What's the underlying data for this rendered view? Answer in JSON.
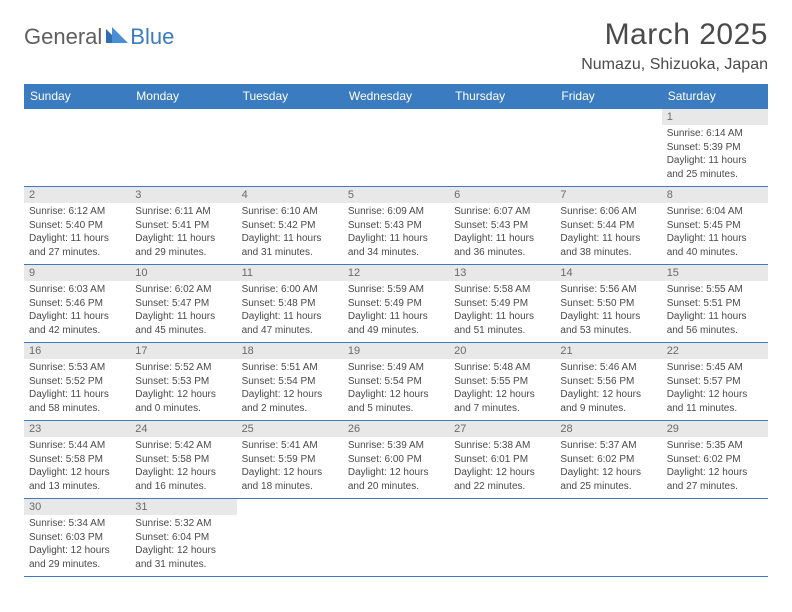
{
  "logo": {
    "text1": "General",
    "text2": "Blue"
  },
  "title": "March 2025",
  "location": "Numazu, Shizuoka, Japan",
  "colors": {
    "header_bg": "#3b7bbf",
    "header_text": "#ffffff",
    "daynum_bg": "#e8e8e8",
    "rule": "#3b7bbf",
    "body_text": "#4a4a4a"
  },
  "dayHeaders": [
    "Sunday",
    "Monday",
    "Tuesday",
    "Wednesday",
    "Thursday",
    "Friday",
    "Saturday"
  ],
  "weeks": [
    [
      null,
      null,
      null,
      null,
      null,
      null,
      {
        "n": "1",
        "sr": "Sunrise: 6:14 AM",
        "ss": "Sunset: 5:39 PM",
        "dl": "Daylight: 11 hours and 25 minutes."
      }
    ],
    [
      {
        "n": "2",
        "sr": "Sunrise: 6:12 AM",
        "ss": "Sunset: 5:40 PM",
        "dl": "Daylight: 11 hours and 27 minutes."
      },
      {
        "n": "3",
        "sr": "Sunrise: 6:11 AM",
        "ss": "Sunset: 5:41 PM",
        "dl": "Daylight: 11 hours and 29 minutes."
      },
      {
        "n": "4",
        "sr": "Sunrise: 6:10 AM",
        "ss": "Sunset: 5:42 PM",
        "dl": "Daylight: 11 hours and 31 minutes."
      },
      {
        "n": "5",
        "sr": "Sunrise: 6:09 AM",
        "ss": "Sunset: 5:43 PM",
        "dl": "Daylight: 11 hours and 34 minutes."
      },
      {
        "n": "6",
        "sr": "Sunrise: 6:07 AM",
        "ss": "Sunset: 5:43 PM",
        "dl": "Daylight: 11 hours and 36 minutes."
      },
      {
        "n": "7",
        "sr": "Sunrise: 6:06 AM",
        "ss": "Sunset: 5:44 PM",
        "dl": "Daylight: 11 hours and 38 minutes."
      },
      {
        "n": "8",
        "sr": "Sunrise: 6:04 AM",
        "ss": "Sunset: 5:45 PM",
        "dl": "Daylight: 11 hours and 40 minutes."
      }
    ],
    [
      {
        "n": "9",
        "sr": "Sunrise: 6:03 AM",
        "ss": "Sunset: 5:46 PM",
        "dl": "Daylight: 11 hours and 42 minutes."
      },
      {
        "n": "10",
        "sr": "Sunrise: 6:02 AM",
        "ss": "Sunset: 5:47 PM",
        "dl": "Daylight: 11 hours and 45 minutes."
      },
      {
        "n": "11",
        "sr": "Sunrise: 6:00 AM",
        "ss": "Sunset: 5:48 PM",
        "dl": "Daylight: 11 hours and 47 minutes."
      },
      {
        "n": "12",
        "sr": "Sunrise: 5:59 AM",
        "ss": "Sunset: 5:49 PM",
        "dl": "Daylight: 11 hours and 49 minutes."
      },
      {
        "n": "13",
        "sr": "Sunrise: 5:58 AM",
        "ss": "Sunset: 5:49 PM",
        "dl": "Daylight: 11 hours and 51 minutes."
      },
      {
        "n": "14",
        "sr": "Sunrise: 5:56 AM",
        "ss": "Sunset: 5:50 PM",
        "dl": "Daylight: 11 hours and 53 minutes."
      },
      {
        "n": "15",
        "sr": "Sunrise: 5:55 AM",
        "ss": "Sunset: 5:51 PM",
        "dl": "Daylight: 11 hours and 56 minutes."
      }
    ],
    [
      {
        "n": "16",
        "sr": "Sunrise: 5:53 AM",
        "ss": "Sunset: 5:52 PM",
        "dl": "Daylight: 11 hours and 58 minutes."
      },
      {
        "n": "17",
        "sr": "Sunrise: 5:52 AM",
        "ss": "Sunset: 5:53 PM",
        "dl": "Daylight: 12 hours and 0 minutes."
      },
      {
        "n": "18",
        "sr": "Sunrise: 5:51 AM",
        "ss": "Sunset: 5:54 PM",
        "dl": "Daylight: 12 hours and 2 minutes."
      },
      {
        "n": "19",
        "sr": "Sunrise: 5:49 AM",
        "ss": "Sunset: 5:54 PM",
        "dl": "Daylight: 12 hours and 5 minutes."
      },
      {
        "n": "20",
        "sr": "Sunrise: 5:48 AM",
        "ss": "Sunset: 5:55 PM",
        "dl": "Daylight: 12 hours and 7 minutes."
      },
      {
        "n": "21",
        "sr": "Sunrise: 5:46 AM",
        "ss": "Sunset: 5:56 PM",
        "dl": "Daylight: 12 hours and 9 minutes."
      },
      {
        "n": "22",
        "sr": "Sunrise: 5:45 AM",
        "ss": "Sunset: 5:57 PM",
        "dl": "Daylight: 12 hours and 11 minutes."
      }
    ],
    [
      {
        "n": "23",
        "sr": "Sunrise: 5:44 AM",
        "ss": "Sunset: 5:58 PM",
        "dl": "Daylight: 12 hours and 13 minutes."
      },
      {
        "n": "24",
        "sr": "Sunrise: 5:42 AM",
        "ss": "Sunset: 5:58 PM",
        "dl": "Daylight: 12 hours and 16 minutes."
      },
      {
        "n": "25",
        "sr": "Sunrise: 5:41 AM",
        "ss": "Sunset: 5:59 PM",
        "dl": "Daylight: 12 hours and 18 minutes."
      },
      {
        "n": "26",
        "sr": "Sunrise: 5:39 AM",
        "ss": "Sunset: 6:00 PM",
        "dl": "Daylight: 12 hours and 20 minutes."
      },
      {
        "n": "27",
        "sr": "Sunrise: 5:38 AM",
        "ss": "Sunset: 6:01 PM",
        "dl": "Daylight: 12 hours and 22 minutes."
      },
      {
        "n": "28",
        "sr": "Sunrise: 5:37 AM",
        "ss": "Sunset: 6:02 PM",
        "dl": "Daylight: 12 hours and 25 minutes."
      },
      {
        "n": "29",
        "sr": "Sunrise: 5:35 AM",
        "ss": "Sunset: 6:02 PM",
        "dl": "Daylight: 12 hours and 27 minutes."
      }
    ],
    [
      {
        "n": "30",
        "sr": "Sunrise: 5:34 AM",
        "ss": "Sunset: 6:03 PM",
        "dl": "Daylight: 12 hours and 29 minutes."
      },
      {
        "n": "31",
        "sr": "Sunrise: 5:32 AM",
        "ss": "Sunset: 6:04 PM",
        "dl": "Daylight: 12 hours and 31 minutes."
      },
      null,
      null,
      null,
      null,
      null
    ]
  ]
}
